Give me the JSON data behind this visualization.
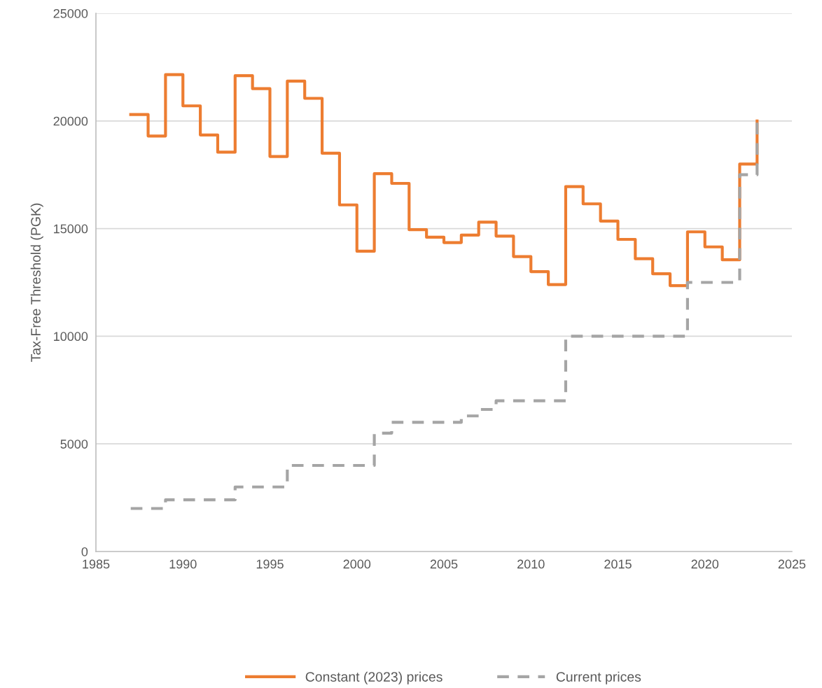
{
  "chart_data": {
    "type": "step",
    "ylabel": "Tax-Free Threshold (PGK)",
    "x": [
      1987,
      1988,
      1989,
      1990,
      1991,
      1992,
      1993,
      1994,
      1995,
      1996,
      1997,
      1998,
      1999,
      2000,
      2001,
      2002,
      2003,
      2004,
      2005,
      2006,
      2007,
      2008,
      2009,
      2010,
      2011,
      2012,
      2013,
      2014,
      2015,
      2016,
      2017,
      2018,
      2019,
      2020,
      2021,
      2022,
      2023
    ],
    "series": [
      {
        "name": "Constant (2023) prices",
        "color": "#ed7d31",
        "line_style": "solid",
        "values": [
          20300,
          19300,
          22150,
          20700,
          19350,
          18550,
          22100,
          21500,
          18350,
          21850,
          21050,
          18500,
          16100,
          13950,
          17550,
          17100,
          14950,
          14600,
          14350,
          14700,
          15300,
          14650,
          13700,
          13000,
          12400,
          16950,
          16150,
          15350,
          14500,
          13600,
          12900,
          12350,
          14850,
          14150,
          13550,
          18000,
          20000
        ]
      },
      {
        "name": "Current prices",
        "color": "#a5a5a5",
        "line_style": "dashed",
        "values": [
          2000,
          2000,
          2400,
          2400,
          2400,
          2400,
          3000,
          3000,
          3000,
          4000,
          4000,
          4000,
          4000,
          4000,
          5500,
          6000,
          6000,
          6000,
          6000,
          6300,
          6600,
          7000,
          7000,
          7000,
          7000,
          10000,
          10000,
          10000,
          10000,
          10000,
          10000,
          10000,
          12500,
          12500,
          12500,
          17500,
          20000
        ]
      }
    ],
    "xlim": [
      1985,
      2025
    ],
    "xticks": [
      1985,
      1990,
      1995,
      2000,
      2005,
      2010,
      2015,
      2020,
      2025
    ],
    "ylim": [
      0,
      25000
    ],
    "yticks": [
      0,
      5000,
      10000,
      15000,
      20000,
      25000
    ],
    "grid": "y",
    "legend": "bottom",
    "marker": "none"
  }
}
